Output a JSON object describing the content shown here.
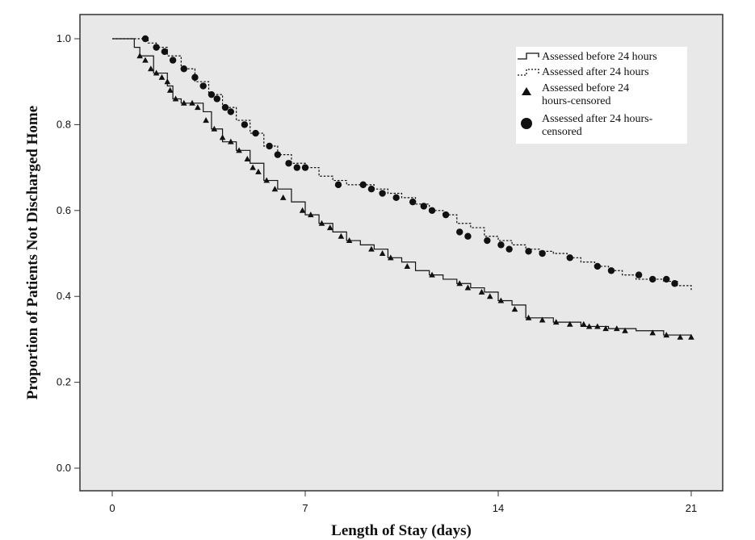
{
  "chart_data": {
    "type": "line",
    "xlabel": "Length of Stay (days)",
    "ylabel": "Proportion of Patients Not Discharged Home",
    "xlim": [
      0,
      21
    ],
    "ylim": [
      0.0,
      1.0
    ],
    "xticks": [
      "0",
      "7",
      "14",
      "21"
    ],
    "yticks": [
      "0.0",
      "0.2",
      "0.4",
      "0.6",
      "0.8",
      "1.0"
    ],
    "grid": false,
    "legend_position": "top-right",
    "legend": [
      "Assessed before 24 hours",
      "Assessed after 24 hours",
      "Assessed before 24 hours-censored",
      "Assessed after 24 hours-censored"
    ],
    "series": [
      {
        "name": "Assessed before 24 hours",
        "style": "solid",
        "x": [
          0,
          0.8,
          1.0,
          1.5,
          2.0,
          2.2,
          2.5,
          3.0,
          3.3,
          3.6,
          4.0,
          4.5,
          5.0,
          5.5,
          6.0,
          6.5,
          7.0,
          7.5,
          8.0,
          8.5,
          9.0,
          9.5,
          10.0,
          10.5,
          11.0,
          11.5,
          12.0,
          12.5,
          13.0,
          13.5,
          14.0,
          14.5,
          15.0,
          16.0,
          17.0,
          18.0,
          19.0,
          20.0,
          21.0
        ],
        "y": [
          1.0,
          0.98,
          0.96,
          0.92,
          0.89,
          0.86,
          0.85,
          0.85,
          0.83,
          0.79,
          0.76,
          0.74,
          0.71,
          0.67,
          0.65,
          0.62,
          0.59,
          0.57,
          0.55,
          0.53,
          0.52,
          0.51,
          0.49,
          0.48,
          0.46,
          0.45,
          0.44,
          0.43,
          0.42,
          0.41,
          0.39,
          0.38,
          0.35,
          0.34,
          0.33,
          0.325,
          0.32,
          0.31,
          0.305
        ]
      },
      {
        "name": "Assessed after 24 hours",
        "style": "dashed",
        "x": [
          0,
          1.0,
          1.3,
          1.6,
          2.0,
          2.5,
          3.0,
          3.5,
          4.0,
          4.5,
          5.0,
          5.5,
          6.0,
          6.5,
          7.0,
          7.5,
          8.0,
          8.5,
          9.0,
          9.5,
          10.0,
          10.5,
          11.0,
          11.5,
          12.0,
          12.5,
          13.0,
          13.5,
          14.0,
          14.5,
          15.0,
          15.5,
          16.0,
          16.5,
          17.0,
          17.5,
          18.0,
          18.5,
          19.0,
          19.5,
          20.0,
          20.5,
          21.0
        ],
        "y": [
          1.0,
          1.0,
          0.99,
          0.98,
          0.96,
          0.93,
          0.9,
          0.87,
          0.84,
          0.81,
          0.78,
          0.75,
          0.73,
          0.71,
          0.7,
          0.68,
          0.67,
          0.66,
          0.66,
          0.65,
          0.64,
          0.63,
          0.615,
          0.6,
          0.59,
          0.57,
          0.56,
          0.54,
          0.53,
          0.52,
          0.51,
          0.505,
          0.5,
          0.49,
          0.48,
          0.47,
          0.46,
          0.45,
          0.44,
          0.44,
          0.435,
          0.425,
          0.415
        ]
      }
    ],
    "censored": [
      {
        "name": "Assessed before 24 hours-censored",
        "marker": "triangle",
        "x": [
          1.0,
          1.2,
          1.4,
          1.6,
          1.8,
          2.0,
          2.1,
          2.3,
          2.6,
          2.9,
          3.1,
          3.4,
          3.7,
          4.0,
          4.3,
          4.6,
          4.9,
          5.1,
          5.3,
          5.6,
          5.9,
          6.2,
          6.9,
          7.2,
          7.6,
          7.9,
          8.3,
          8.6,
          9.4,
          9.8,
          10.1,
          10.7,
          11.6,
          12.6,
          12.9,
          13.4,
          13.7,
          14.1,
          14.6,
          15.1,
          15.6,
          16.1,
          16.6,
          17.1,
          17.3,
          17.6,
          17.9,
          18.3,
          18.6,
          19.6,
          20.1,
          20.6,
          21.0
        ],
        "y": [
          0.96,
          0.95,
          0.93,
          0.92,
          0.91,
          0.9,
          0.88,
          0.86,
          0.85,
          0.85,
          0.84,
          0.81,
          0.79,
          0.77,
          0.76,
          0.74,
          0.72,
          0.7,
          0.69,
          0.67,
          0.65,
          0.63,
          0.6,
          0.59,
          0.57,
          0.56,
          0.54,
          0.53,
          0.51,
          0.5,
          0.49,
          0.47,
          0.45,
          0.43,
          0.42,
          0.41,
          0.4,
          0.39,
          0.37,
          0.35,
          0.345,
          0.34,
          0.335,
          0.335,
          0.33,
          0.33,
          0.325,
          0.325,
          0.32,
          0.315,
          0.31,
          0.305,
          0.305
        ]
      },
      {
        "name": "Assessed after 24 hours-censored",
        "marker": "circle",
        "x": [
          1.2,
          1.6,
          1.9,
          2.2,
          2.6,
          3.0,
          3.3,
          3.6,
          3.8,
          4.1,
          4.3,
          4.8,
          5.2,
          5.7,
          6.0,
          6.4,
          6.7,
          7.0,
          8.2,
          9.1,
          9.4,
          9.8,
          10.3,
          10.9,
          11.3,
          11.6,
          12.1,
          12.6,
          12.9,
          13.6,
          14.1,
          14.4,
          15.1,
          15.6,
          16.6,
          17.6,
          18.1,
          19.1,
          19.6,
          20.1,
          20.4
        ],
        "y": [
          1.0,
          0.98,
          0.97,
          0.95,
          0.93,
          0.91,
          0.89,
          0.87,
          0.86,
          0.84,
          0.83,
          0.8,
          0.78,
          0.75,
          0.73,
          0.71,
          0.7,
          0.7,
          0.66,
          0.66,
          0.65,
          0.64,
          0.63,
          0.62,
          0.61,
          0.6,
          0.59,
          0.55,
          0.54,
          0.53,
          0.52,
          0.51,
          0.505,
          0.5,
          0.49,
          0.47,
          0.46,
          0.45,
          0.44,
          0.44,
          0.43
        ]
      }
    ]
  }
}
